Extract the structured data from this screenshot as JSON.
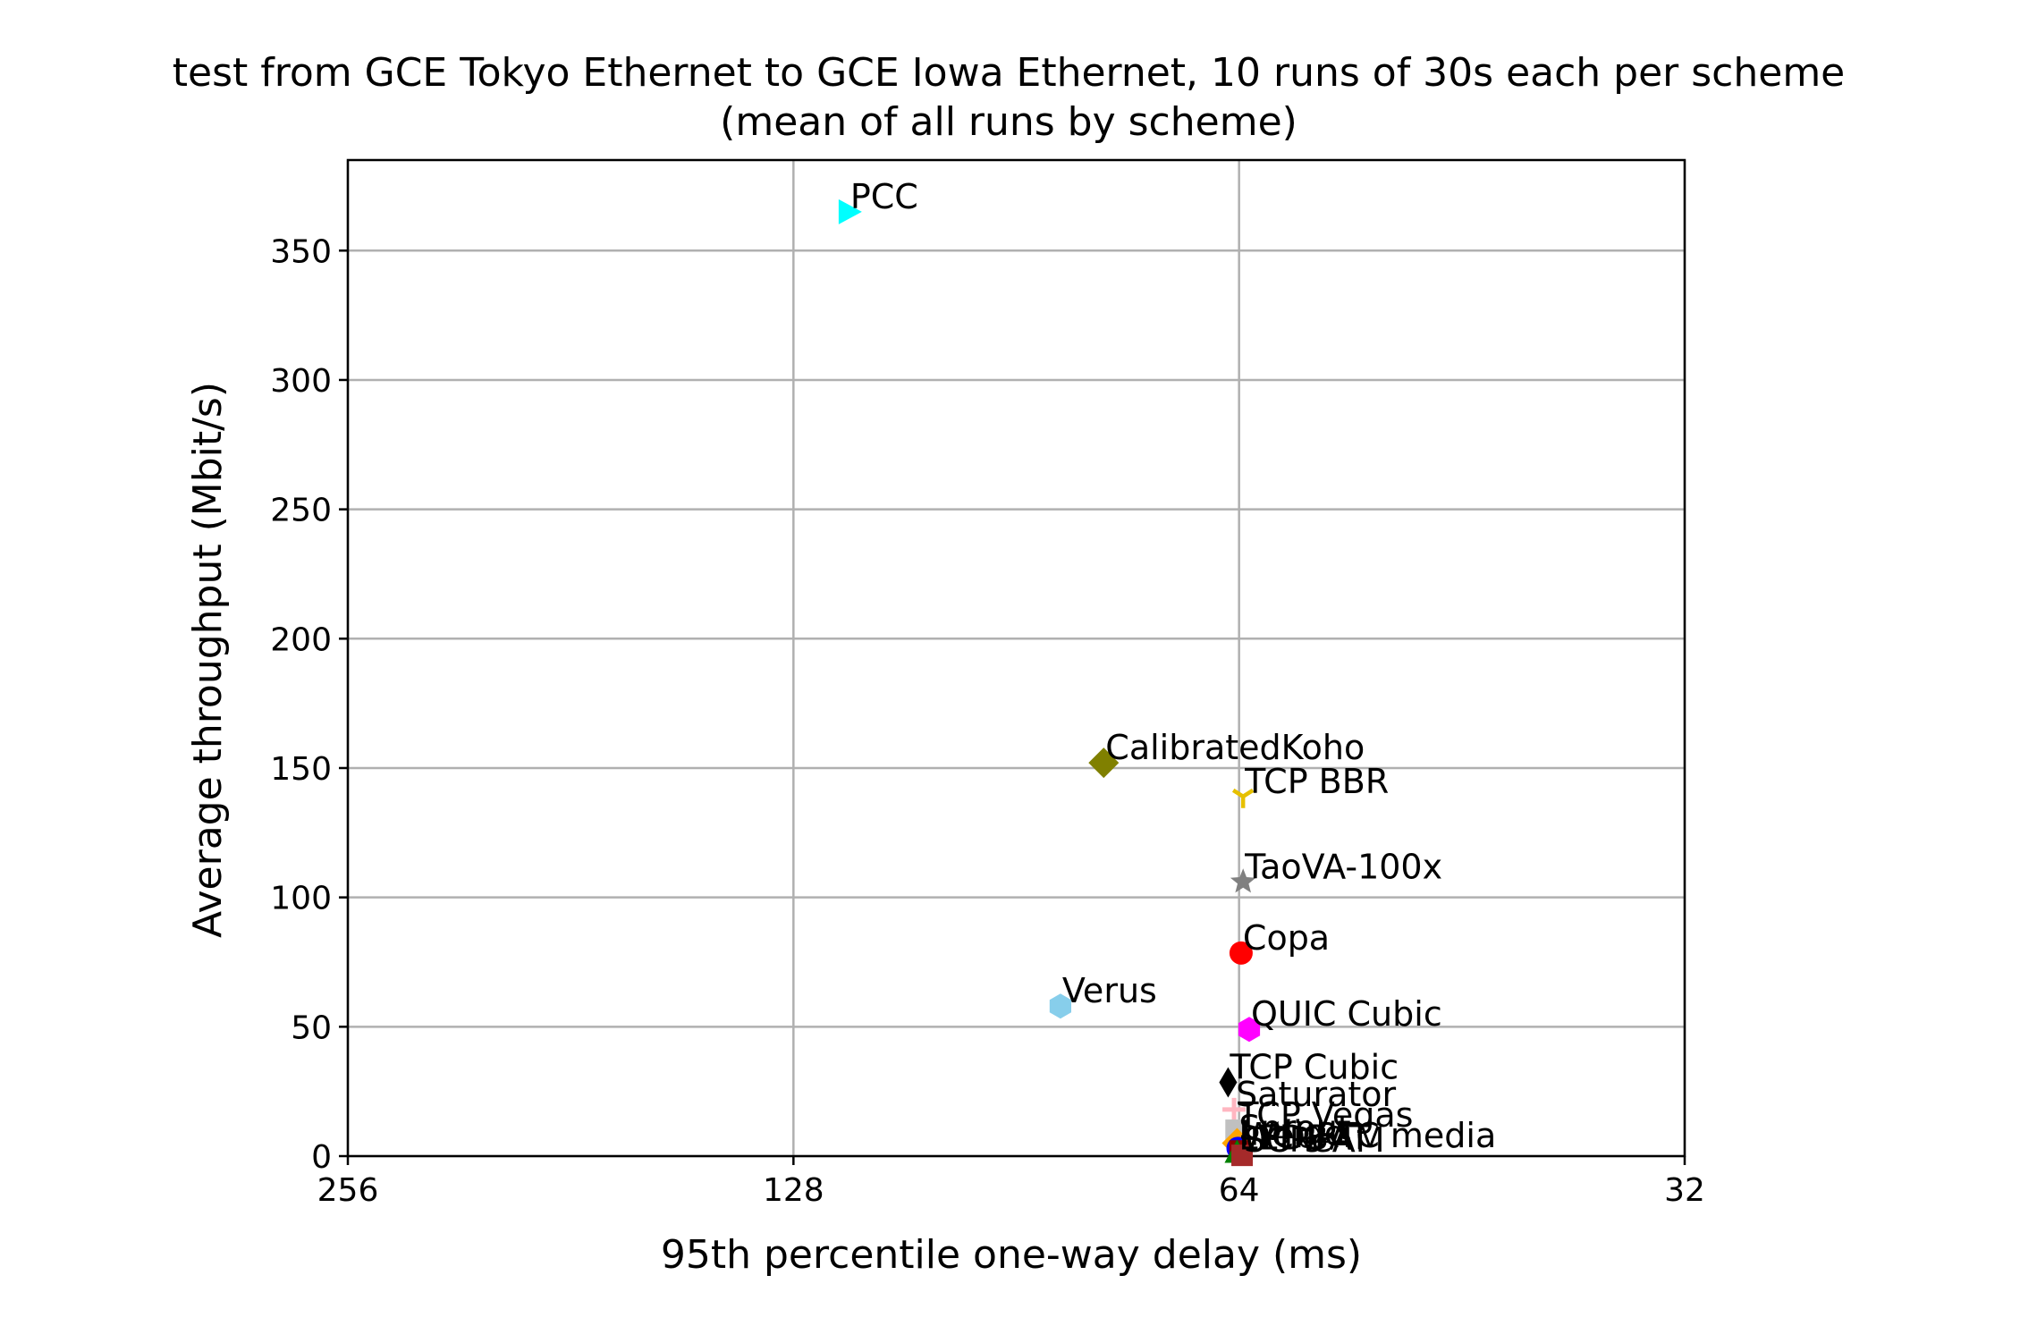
{
  "chart_data": {
    "type": "scatter",
    "title": "test from GCE Tokyo Ethernet to GCE Iowa Ethernet, 10 runs of 30s each per scheme",
    "subtitle": "(mean of all runs by scheme)",
    "xlabel": "95th percentile one-way delay (ms)",
    "ylabel": "Average throughput (Mbit/s)",
    "x_scale": "log2",
    "x_inverted": true,
    "xlim": [
      256,
      32
    ],
    "ylim": [
      0,
      385
    ],
    "x_ticks": [
      256,
      128,
      64,
      32
    ],
    "y_ticks": [
      0,
      50,
      100,
      150,
      200,
      250,
      300,
      350
    ],
    "grid": true,
    "legend": "none",
    "points": [
      {
        "name": "PCC",
        "x": 117.5,
        "y": 365.0,
        "color": "#00ffff",
        "marker": "triangle-right"
      },
      {
        "name": "CalibratedKoho",
        "x": 79.0,
        "y": 152.0,
        "color": "#808000",
        "marker": "diamond"
      },
      {
        "name": "TCP BBR",
        "x": 63.6,
        "y": 139.0,
        "color": "#e6c000",
        "marker": "tri-down"
      },
      {
        "name": "TaoVA-100x",
        "x": 63.6,
        "y": 106.0,
        "color": "#808080",
        "marker": "star"
      },
      {
        "name": "Copa",
        "x": 63.8,
        "y": 78.5,
        "color": "#ff0000",
        "marker": "circle"
      },
      {
        "name": "Verus",
        "x": 84.5,
        "y": 58.0,
        "color": "#87ceeb",
        "marker": "hexagon"
      },
      {
        "name": "QUIC Cubic",
        "x": 63.0,
        "y": 49.0,
        "color": "#ff00ff",
        "marker": "hexagon"
      },
      {
        "name": "TCP Cubic",
        "x": 65.1,
        "y": 28.5,
        "color": "#000000",
        "marker": "thin-diamond"
      },
      {
        "name": "Saturator",
        "x": 64.5,
        "y": 18.0,
        "color": "#ffb6c1",
        "marker": "plus"
      },
      {
        "name": "TCP Vegas",
        "x": 64.3,
        "y": 10.0,
        "color": "#c0c0c0",
        "marker": "square"
      },
      {
        "name": "Sprout",
        "x": 64.2,
        "y": 5.0,
        "color": "#ffa500",
        "marker": "diamond"
      },
      {
        "name": "Indigo",
        "x": 64.1,
        "y": 3.0,
        "color": "#0000ff",
        "marker": "circle"
      },
      {
        "name": "WebRTC media",
        "x": 63.9,
        "y": 2.0,
        "color": "#8b0000",
        "marker": "square"
      },
      {
        "name": "LEDBAT",
        "x": 64.2,
        "y": 1.2,
        "color": "#008000",
        "marker": "triangle-up"
      },
      {
        "name": "SCReAM",
        "x": 63.7,
        "y": 0.3,
        "color": "#a52a2a",
        "marker": "square"
      }
    ]
  }
}
